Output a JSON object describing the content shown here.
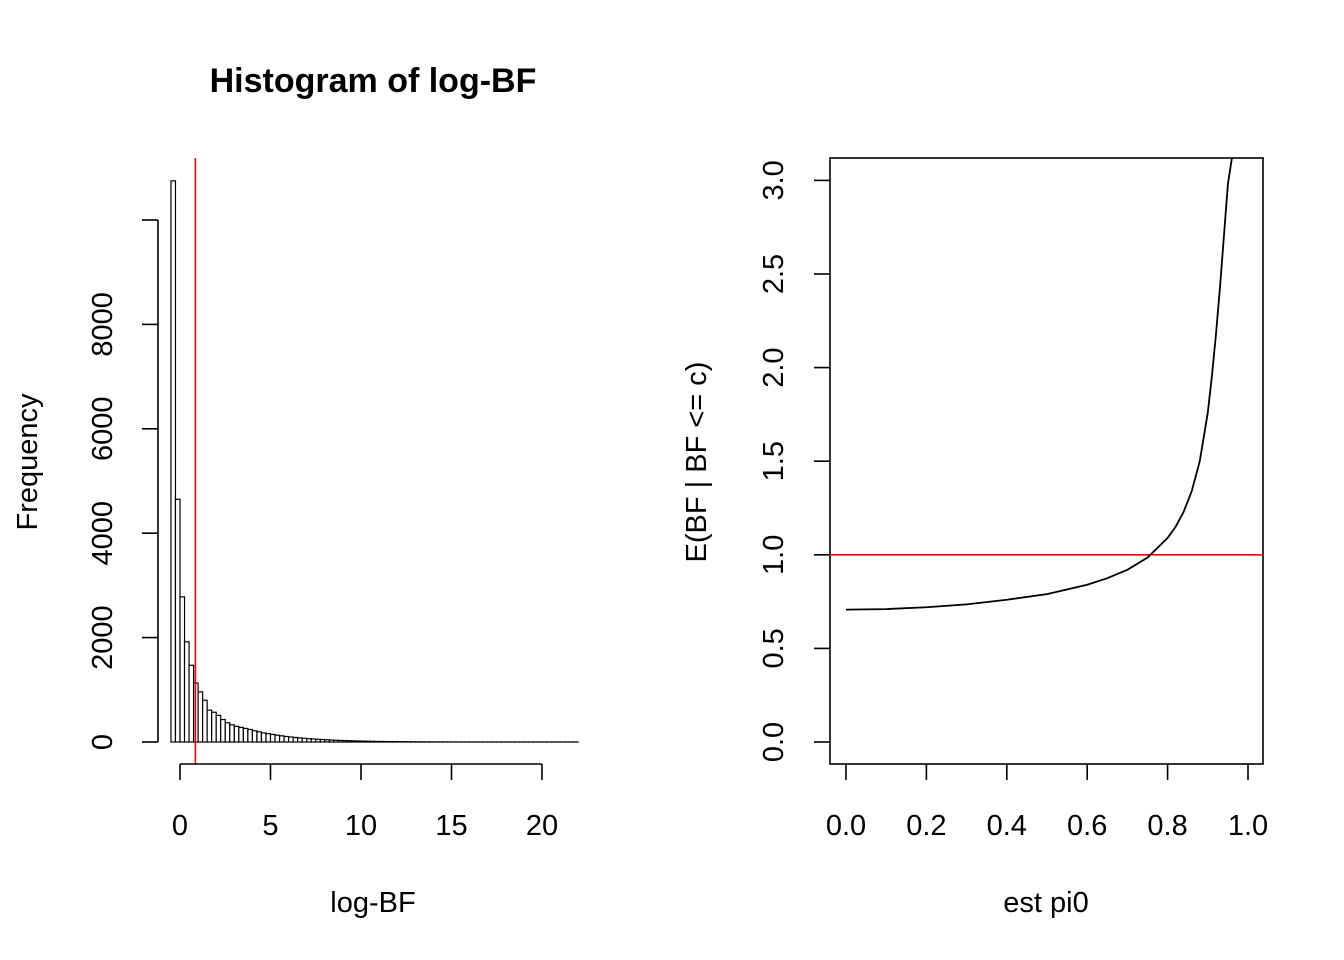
{
  "chart_data": [
    {
      "type": "bar",
      "title": "Histogram of log-BF",
      "xlabel": "log-BF",
      "ylabel": "Frequency",
      "xlim": [
        -0.7,
        21.9
      ],
      "ylim": [
        0,
        11000
      ],
      "xticks": [
        "0",
        "5",
        "10",
        "15",
        "20"
      ],
      "yticks": [
        "0",
        "2000",
        "4000",
        "6000",
        "8000"
      ],
      "bin_width": 0.25,
      "bins_start": -0.5,
      "values": [
        10750,
        4650,
        2780,
        1920,
        1470,
        1130,
        960,
        800,
        610,
        570,
        510,
        430,
        370,
        330,
        300,
        280,
        260,
        240,
        215,
        195,
        175,
        160,
        145,
        130,
        118,
        106,
        96,
        87,
        79,
        71,
        64,
        58,
        52,
        47,
        42,
        38,
        34,
        30,
        27,
        24,
        21,
        19,
        17,
        15,
        13,
        11,
        10,
        9,
        8,
        7,
        6,
        5,
        5,
        4,
        4,
        3,
        3,
        3,
        2,
        2,
        2,
        2,
        1,
        1,
        1,
        1,
        1,
        1,
        1,
        1,
        1,
        1,
        1,
        1,
        1,
        1,
        1,
        1,
        1,
        1,
        1,
        1,
        1,
        1,
        1,
        1,
        1,
        1,
        1,
        1
      ],
      "vline": {
        "x": 0.85,
        "color": "#ff0000"
      },
      "bar_fill": "#ffffff",
      "bar_stroke": "#000000"
    },
    {
      "type": "line",
      "title": "",
      "xlabel": "est pi0",
      "ylabel": "E(BF | BF <= c)",
      "xlim": [
        0.0,
        1.0
      ],
      "ylim": [
        0.0,
        3.0
      ],
      "xticks": [
        "0.0",
        "0.2",
        "0.4",
        "0.6",
        "0.8",
        "1.0"
      ],
      "yticks": [
        "0.0",
        "0.5",
        "1.0",
        "1.5",
        "2.0",
        "2.5",
        "3.0"
      ],
      "series": [
        {
          "x": [
            0.0,
            0.1,
            0.2,
            0.3,
            0.4,
            0.5,
            0.6,
            0.65,
            0.7,
            0.75,
            0.8,
            0.82,
            0.84,
            0.86,
            0.88,
            0.9,
            0.91,
            0.92,
            0.93,
            0.94,
            0.95,
            0.96
          ],
          "y": [
            0.707,
            0.71,
            0.72,
            0.735,
            0.76,
            0.79,
            0.84,
            0.875,
            0.92,
            0.985,
            1.09,
            1.15,
            1.23,
            1.34,
            1.5,
            1.76,
            1.95,
            2.17,
            2.42,
            2.7,
            2.98,
            3.12
          ],
          "color": "#000000"
        }
      ],
      "hline": {
        "y": 1.0,
        "color": "#ff0000"
      }
    }
  ]
}
